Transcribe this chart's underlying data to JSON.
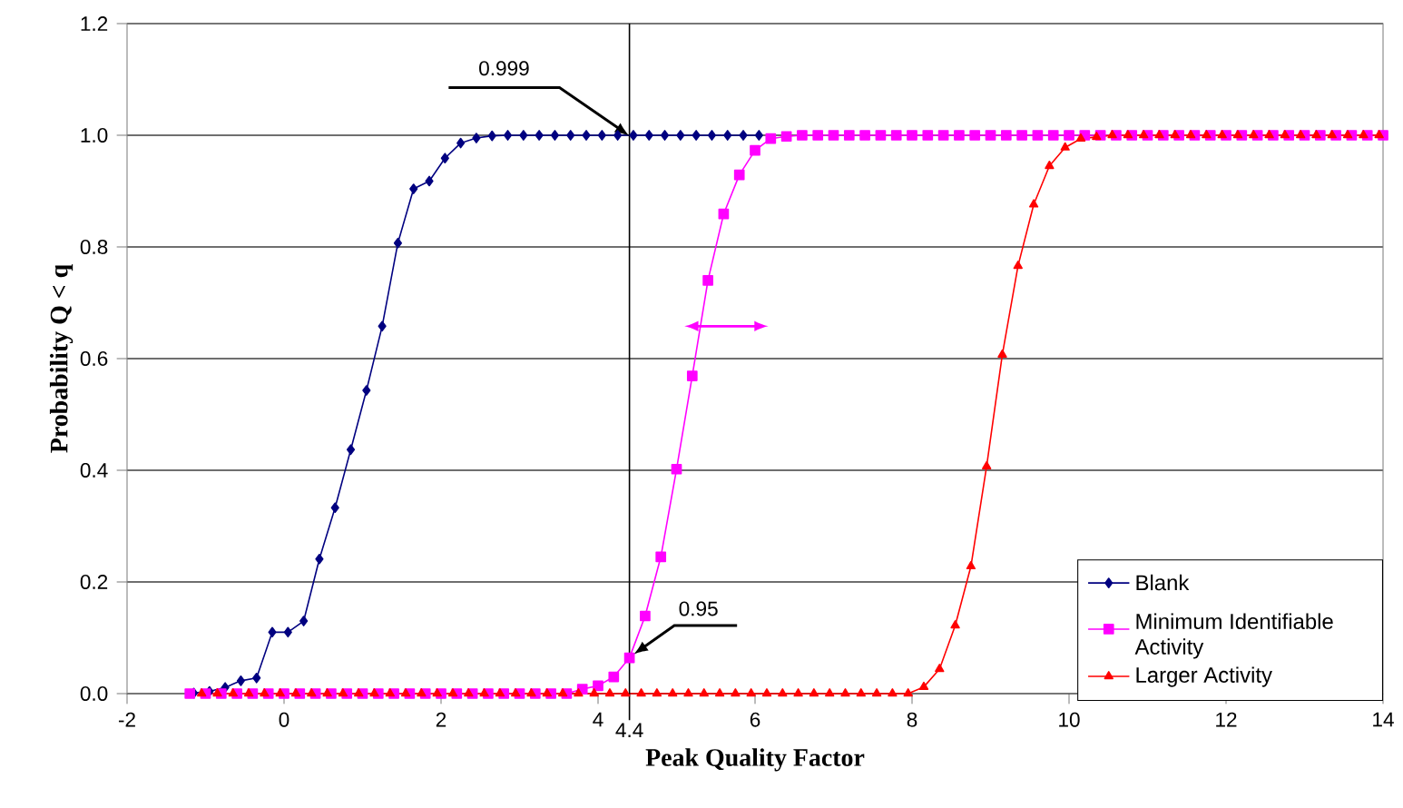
{
  "chart_data": {
    "type": "line",
    "xlabel": "Peak Quality Factor",
    "ylabel": "Probability Q < q",
    "xlim": [
      -2,
      14
    ],
    "xticks": [
      -2,
      0,
      2,
      4,
      6,
      8,
      10,
      12,
      14
    ],
    "ylim": [
      0,
      1.2
    ],
    "yticks": [
      {
        "value": 0,
        "label": "0.0"
      },
      {
        "value": 0.2,
        "label": "0.2"
      },
      {
        "value": 0.4,
        "label": "0.4"
      },
      {
        "value": 0.6,
        "label": "0.6"
      },
      {
        "value": 0.8,
        "label": "0.8"
      },
      {
        "value": 1.0,
        "label": "1.0"
      },
      {
        "value": 1.2,
        "label": "1.2"
      }
    ],
    "grid": "y",
    "legend": "bottom right",
    "ref_lines": [
      {
        "axis": "x",
        "value": 4.4,
        "label": "4.4"
      }
    ],
    "annotations": [
      {
        "text": "0.999",
        "x": 4.4,
        "y": 0.999
      },
      {
        "text": "0.95",
        "x": 4.45,
        "y": 0.07
      }
    ],
    "series": [
      {
        "name": "Blank",
        "color": "#000080",
        "marker": "diamond",
        "x": [
          -1.15,
          -0.95,
          -0.75,
          -0.55,
          -0.35,
          -0.15,
          0.05,
          0.25,
          0.45,
          0.65,
          0.85,
          1.05,
          1.25,
          1.45,
          1.65,
          1.85,
          2.05,
          2.25,
          2.45,
          2.65,
          2.85,
          3.05,
          3.25,
          3.45,
          3.65,
          3.85,
          4.05,
          4.25,
          4.45,
          4.65,
          4.85,
          5.05,
          5.25,
          5.45,
          5.65,
          5.85,
          6.05
        ],
        "values": [
          0.001,
          0.004,
          0.011,
          0.023,
          0.028,
          0.11,
          0.11,
          0.13,
          0.241,
          0.333,
          0.437,
          0.543,
          0.658,
          0.807,
          0.904,
          0.918,
          0.959,
          0.986,
          0.995,
          0.999,
          1.0,
          1.0,
          1.0,
          1.0,
          1.0,
          1.0,
          1.0,
          1.0,
          1.0,
          1.0,
          1.0,
          1.0,
          1.0,
          1.0,
          1.0,
          1.0,
          1.0
        ]
      },
      {
        "name": "Minimum Identifiable Activity",
        "color": "#ff00ff",
        "marker": "square",
        "x": [
          -1.2,
          -1.0,
          -0.8,
          -0.6,
          -0.4,
          -0.2,
          0,
          0.2,
          0.4,
          0.6,
          0.8,
          1.0,
          1.2,
          1.4,
          1.6,
          1.8,
          2.0,
          2.2,
          2.4,
          2.6,
          2.8,
          3.0,
          3.2,
          3.4,
          3.6,
          3.8,
          4.0,
          4.2,
          4.4,
          4.6,
          4.8,
          5.0,
          5.2,
          5.4,
          5.6,
          5.8,
          6.0,
          6.2,
          6.4,
          6.6,
          6.8,
          7.0,
          7.2,
          7.4,
          7.6,
          7.8,
          8.0,
          8.2,
          8.4,
          8.6,
          8.8,
          9.0,
          9.2,
          9.4,
          9.6,
          9.8,
          10.0,
          10.2,
          10.4,
          10.6,
          10.8,
          11.0,
          11.2,
          11.4,
          11.6,
          11.8,
          12.0,
          12.2,
          12.4,
          12.6,
          12.8,
          13.0,
          13.2,
          13.4,
          13.6,
          13.8,
          14.0
        ],
        "values": [
          0,
          0,
          0,
          0,
          0,
          0,
          0,
          0,
          0,
          0,
          0,
          0,
          0,
          0,
          0,
          0,
          0,
          0,
          0,
          0,
          0,
          0,
          0,
          0,
          0,
          0.008,
          0.014,
          0.03,
          0.064,
          0.139,
          0.245,
          0.402,
          0.569,
          0.74,
          0.859,
          0.929,
          0.973,
          0.994,
          0.998,
          1.0,
          1.0,
          1.0,
          1.0,
          1.0,
          1.0,
          1.0,
          1.0,
          1.0,
          1.0,
          1.0,
          1.0,
          1.0,
          1.0,
          1.0,
          1.0,
          1.0,
          1.0,
          1.0,
          1.0,
          1.0,
          1.0,
          1.0,
          1.0,
          1.0,
          1.0,
          1.0,
          1.0,
          1.0,
          1.0,
          1.0,
          1.0,
          1.0,
          1.0,
          1.0,
          1.0,
          1.0,
          1.0
        ]
      },
      {
        "name": "Larger Activity",
        "color": "#ff0000",
        "marker": "triangle",
        "x": [
          -1.05,
          -0.85,
          -0.65,
          -0.45,
          -0.25,
          -0.05,
          0.15,
          0.35,
          0.55,
          0.75,
          0.95,
          1.15,
          1.35,
          1.55,
          1.75,
          1.95,
          2.15,
          2.35,
          2.55,
          2.75,
          2.95,
          3.15,
          3.35,
          3.55,
          3.75,
          3.95,
          4.15,
          4.35,
          4.55,
          4.75,
          4.95,
          5.15,
          5.35,
          5.55,
          5.75,
          5.95,
          6.15,
          6.35,
          6.55,
          6.75,
          6.95,
          7.15,
          7.35,
          7.55,
          7.75,
          7.95,
          8.15,
          8.35,
          8.55,
          8.75,
          8.95,
          9.15,
          9.35,
          9.55,
          9.75,
          9.95,
          10.15,
          10.35,
          10.55,
          10.75,
          10.95,
          11.15,
          11.35,
          11.55,
          11.75,
          11.95,
          12.15,
          12.35,
          12.55,
          12.75,
          12.95,
          13.15,
          13.35,
          13.55,
          13.75,
          13.95
        ],
        "values": [
          0,
          0,
          0,
          0,
          0,
          0,
          0,
          0,
          0,
          0,
          0,
          0,
          0,
          0,
          0,
          0,
          0,
          0,
          0,
          0,
          0,
          0,
          0,
          0,
          0,
          0,
          0,
          0,
          0,
          0,
          0,
          0,
          0,
          0,
          0,
          0,
          0,
          0,
          0,
          0,
          0,
          0,
          0,
          0,
          0,
          0,
          0.012,
          0.044,
          0.122,
          0.228,
          0.407,
          0.607,
          0.766,
          0.876,
          0.945,
          0.978,
          0.994,
          0.997,
          1.0,
          1.0,
          1.0,
          1.0,
          1.0,
          1.0,
          1.0,
          1.0,
          1.0,
          1.0,
          1.0,
          1.0,
          1.0,
          1.0,
          1.0,
          1.0,
          1.0,
          1.0
        ]
      }
    ]
  }
}
